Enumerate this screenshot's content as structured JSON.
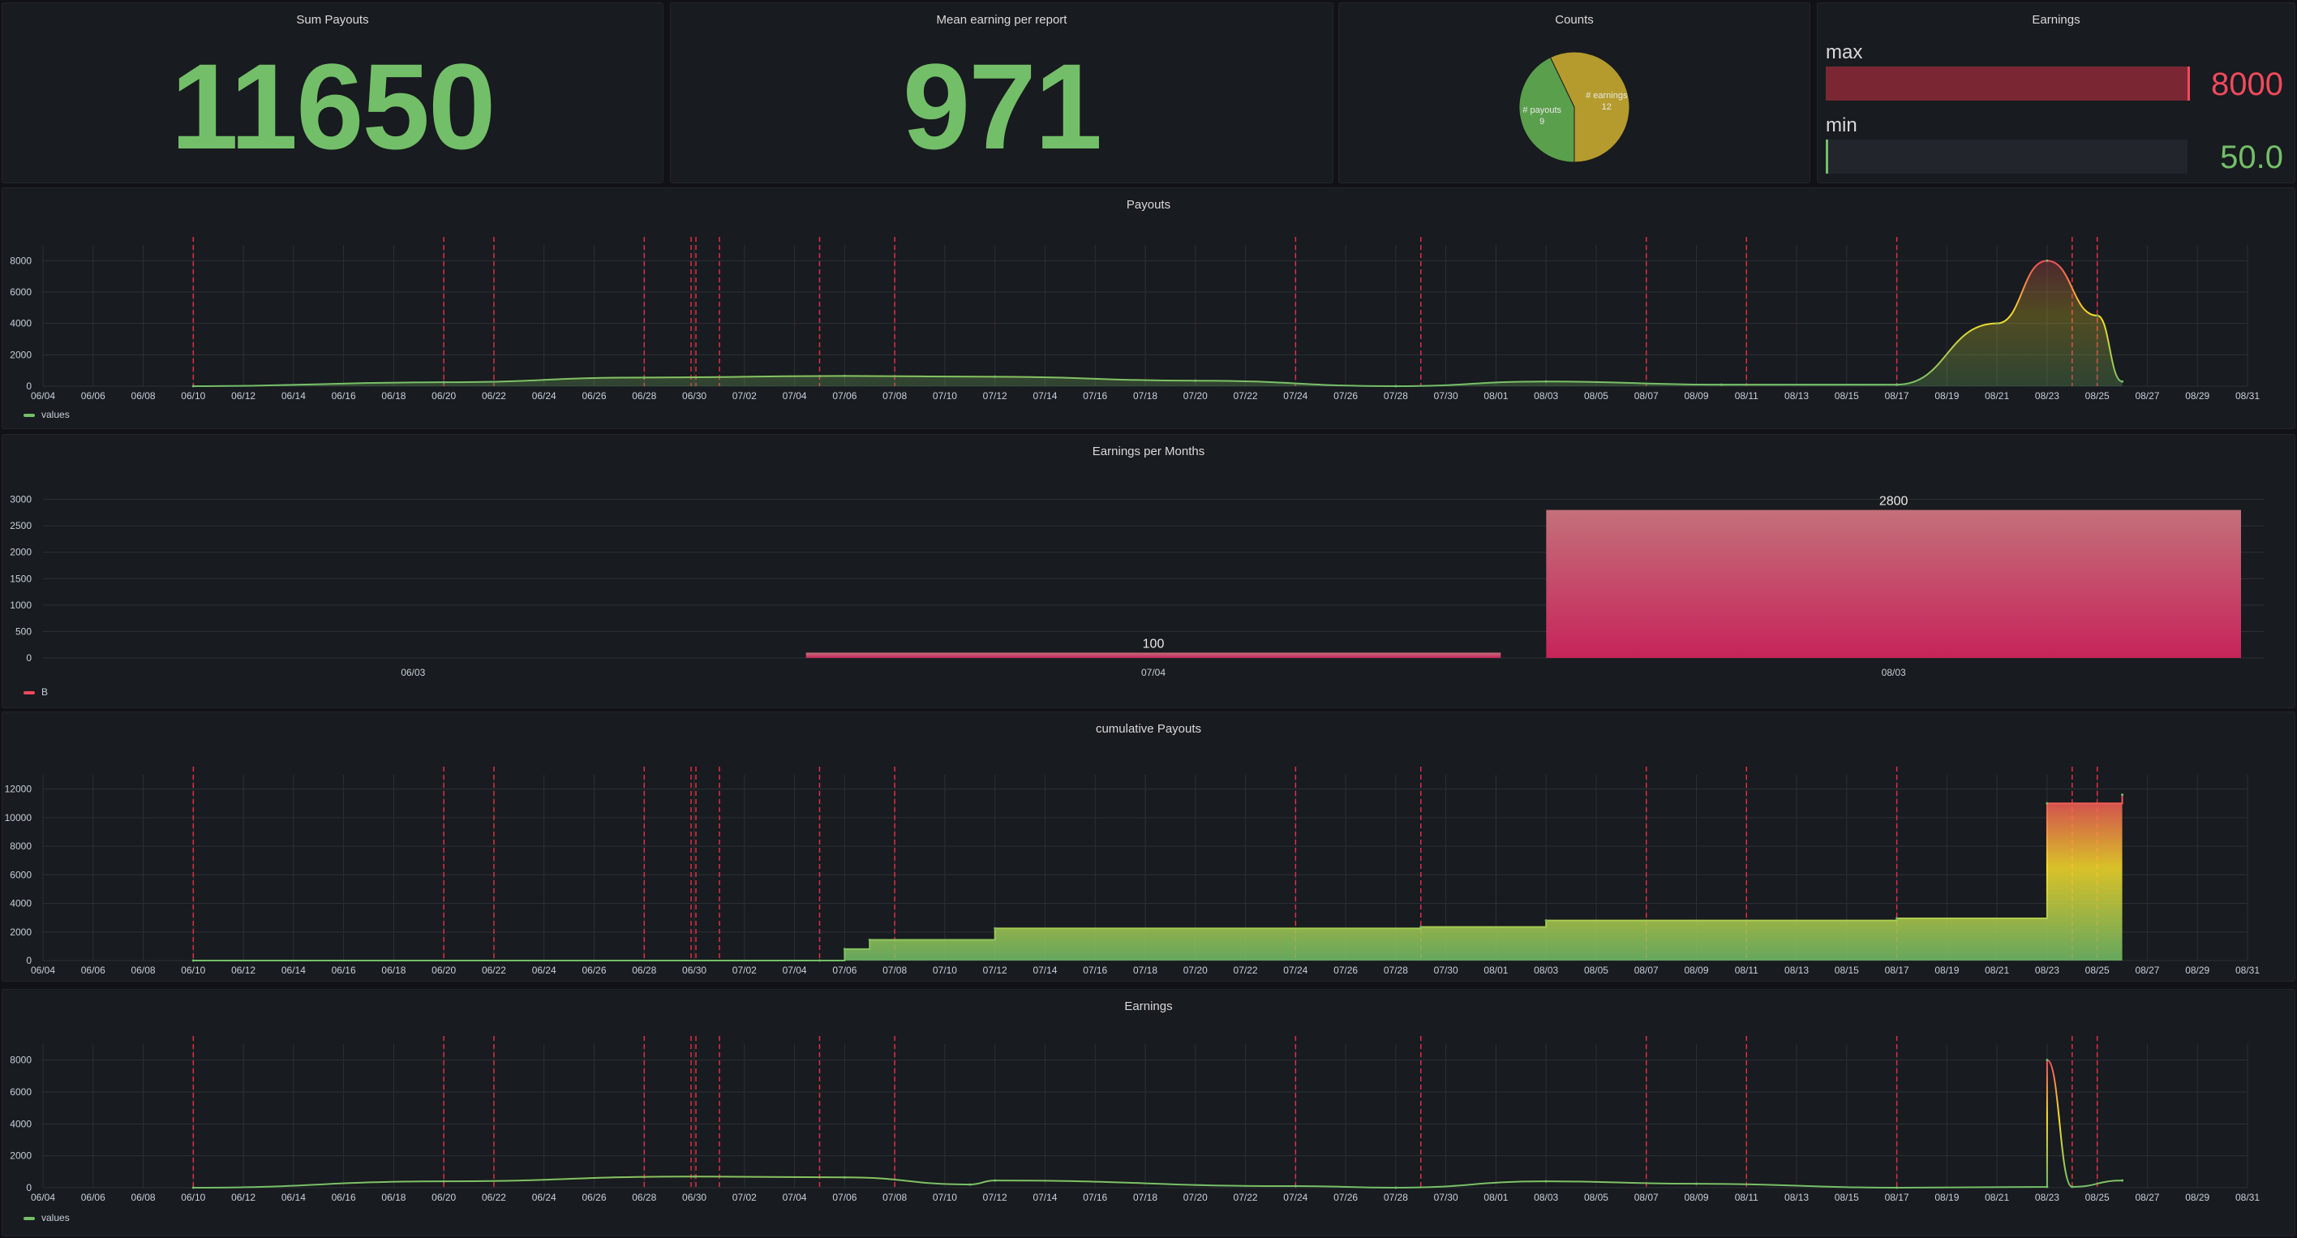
{
  "colors": {
    "green": "#73bf69",
    "yellow": "#fade2a",
    "red": "#f2495c",
    "annotation": "#e02f44",
    "bar_top": "#c4707a",
    "bar_bottom": "#c6245a",
    "pie_green": "#5a9f4c",
    "pie_gold": "#b59b2d",
    "grid": "#2c3036",
    "tick": "#c7d0d9"
  },
  "stats": {
    "sum_payouts": {
      "title": "Sum Payouts",
      "value": "11650"
    },
    "mean_earning": {
      "title": "Mean earning per report",
      "value": "971"
    }
  },
  "counts": {
    "title": "Counts",
    "slices": [
      {
        "label": "# payouts",
        "value": 9
      },
      {
        "label": "# earnings",
        "value": 12
      }
    ]
  },
  "earnings_gauge": {
    "title": "Earnings",
    "max": {
      "label": "max",
      "value": "8000",
      "fraction": 1.0
    },
    "min": {
      "label": "min",
      "value": "50.0",
      "fraction": 0.006
    }
  },
  "date_ticks": [
    "06/04",
    "06/06",
    "06/08",
    "06/10",
    "06/12",
    "06/14",
    "06/16",
    "06/18",
    "06/20",
    "06/22",
    "06/24",
    "06/26",
    "06/28",
    "06/30",
    "07/02",
    "07/04",
    "07/06",
    "07/08",
    "07/10",
    "07/12",
    "07/14",
    "07/16",
    "07/18",
    "07/20",
    "07/22",
    "07/24",
    "07/26",
    "07/28",
    "07/30",
    "08/01",
    "08/03",
    "08/05",
    "08/07",
    "08/09",
    "08/11",
    "08/13",
    "08/15",
    "08/17",
    "08/19",
    "08/21",
    "08/23",
    "08/25",
    "08/27",
    "08/29",
    "08/31"
  ],
  "annotation_dates": [
    "06/10",
    "06/20",
    "06/22",
    "06/28",
    "06/30",
    "06/30",
    "07/01",
    "07/05",
    "07/08",
    "07/24",
    "07/29",
    "08/07",
    "08/11",
    "08/17",
    "08/24",
    "08/25"
  ],
  "chart_data": [
    {
      "id": "payouts",
      "type": "area",
      "title": "Payouts",
      "y_ticks": [
        "0",
        "2000",
        "4000",
        "6000",
        "8000"
      ],
      "ylim": [
        0,
        9000
      ],
      "legend": "values",
      "x": [
        "06/10",
        "06/20",
        "06/28",
        "07/06",
        "07/12",
        "07/20",
        "07/28",
        "08/03",
        "08/10",
        "08/17",
        "08/21",
        "08/23",
        "08/25",
        "08/26"
      ],
      "values": [
        0,
        250,
        550,
        650,
        600,
        350,
        0,
        300,
        100,
        100,
        4000,
        8000,
        4500,
        300
      ]
    },
    {
      "id": "earnings_per_months",
      "type": "bar",
      "title": "Earnings per Months",
      "categories": [
        "06/03",
        "07/04",
        "08/03"
      ],
      "values": [
        0,
        100,
        2800
      ],
      "data_labels": [
        "",
        "100",
        "2800"
      ],
      "y_ticks": [
        "0",
        "500",
        "1000",
        "1500",
        "2000",
        "2500",
        "3000"
      ],
      "ylim": [
        0,
        3300
      ],
      "legend": "B"
    },
    {
      "id": "cumulative_payouts",
      "type": "area",
      "title": "cumulative Payouts",
      "y_ticks": [
        "0",
        "2000",
        "4000",
        "6000",
        "8000",
        "10000",
        "12000"
      ],
      "ylim": [
        0,
        13000
      ],
      "x": [
        "06/10",
        "07/05",
        "07/06",
        "07/07",
        "07/12",
        "07/29",
        "08/03",
        "08/17",
        "08/23",
        "08/26"
      ],
      "values": [
        0,
        0,
        800,
        1450,
        2250,
        2350,
        2800,
        2950,
        11000,
        11600
      ]
    },
    {
      "id": "earnings",
      "type": "line",
      "title": "Earnings",
      "y_ticks": [
        "0",
        "2000",
        "4000",
        "6000",
        "8000"
      ],
      "ylim": [
        0,
        9000
      ],
      "legend": "values",
      "x": [
        "06/10",
        "06/20",
        "06/30",
        "07/06",
        "07/11",
        "07/12",
        "07/24",
        "07/28",
        "08/03",
        "08/09",
        "08/17",
        "08/23",
        "08/23",
        "08/24",
        "08/26"
      ],
      "values": [
        0,
        400,
        700,
        650,
        200,
        450,
        100,
        0,
        400,
        250,
        0,
        50,
        8000,
        50,
        450
      ]
    }
  ]
}
